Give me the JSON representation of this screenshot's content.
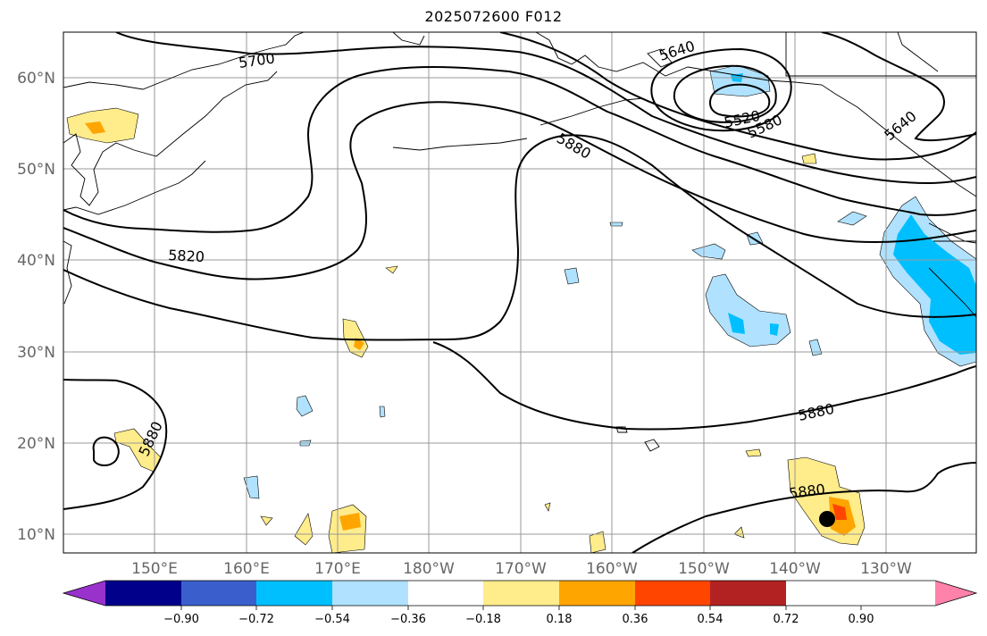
{
  "title": "2025072600 F012",
  "lat_labels": [
    "60°N",
    "50°N",
    "40°N",
    "30°N",
    "20°N",
    "10°N"
  ],
  "lon_labels": [
    "150°E",
    "160°E",
    "170°E",
    "180°W",
    "170°W",
    "160°W",
    "150°W",
    "140°W",
    "130°W"
  ],
  "contour_labels": [
    "5700",
    "5640",
    "5520",
    "5580",
    "5640",
    "5880",
    "5820",
    "5880",
    "5880",
    "5880"
  ],
  "colorbar": {
    "ticks": [
      "−0.90",
      "−0.72",
      "−0.54",
      "−0.36",
      "−0.18",
      "0.18",
      "0.36",
      "0.54",
      "0.72",
      "0.90"
    ],
    "colors": [
      "#9932cc",
      "#00008b",
      "#3a5fcd",
      "#00bfff",
      "#b0e2ff",
      "#ffffff",
      "#ffec8b",
      "#ffa500",
      "#ff4500",
      "#b22222",
      "#ff82ab"
    ]
  },
  "colors": {
    "grid": "#999999",
    "coast": "#000000",
    "contour": "#000000",
    "marker": "#000000"
  }
}
